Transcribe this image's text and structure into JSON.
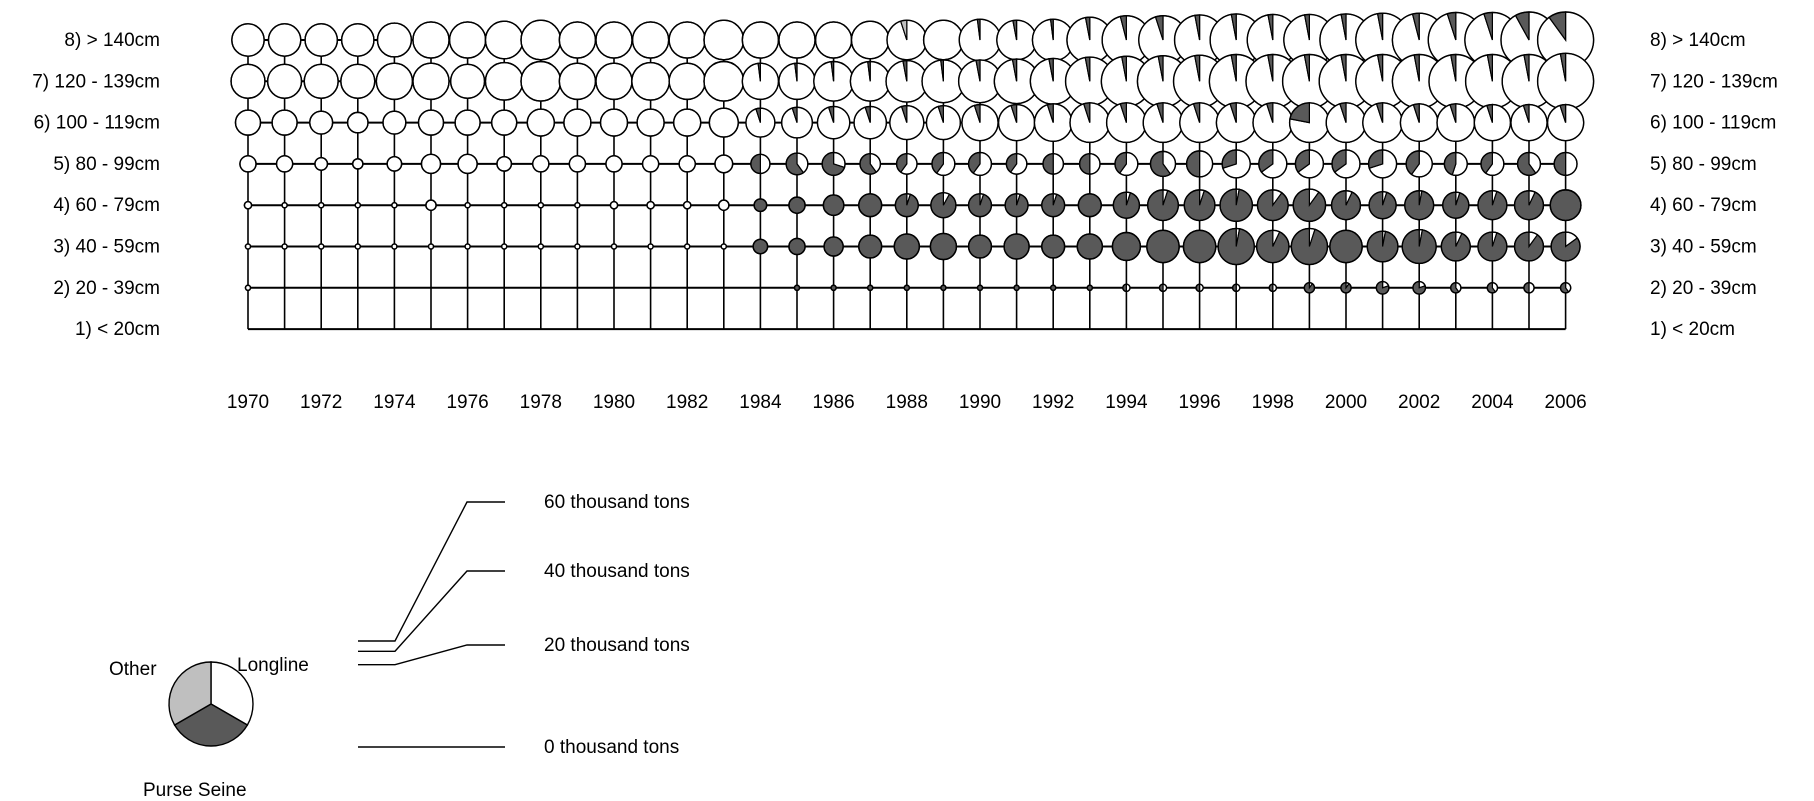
{
  "colors": {
    "longline": "#ffffff",
    "purse_seine": "#595959",
    "other": "#bfbfbf",
    "outline": "#000000"
  },
  "size_legend": {
    "items": [
      {
        "value": 60,
        "label": "60 thousand tons"
      },
      {
        "value": 40,
        "label": "40 thousand tons"
      },
      {
        "value": 20,
        "label": "20 thousand tons"
      },
      {
        "value": 0,
        "label": "0 thousand tons"
      }
    ]
  },
  "gear_legend": {
    "other": "Other",
    "longline": "Longline",
    "purse_seine": "Purse Seine"
  },
  "chart_data": {
    "type": "pie-grid",
    "x_tick_labels": [
      "1970",
      "1972",
      "1974",
      "1976",
      "1978",
      "1980",
      "1982",
      "1984",
      "1986",
      "1988",
      "1990",
      "1992",
      "1994",
      "1996",
      "1998",
      "2000",
      "2002",
      "2004",
      "2006"
    ],
    "years": [
      1970,
      1971,
      1972,
      1973,
      1974,
      1975,
      1976,
      1977,
      1978,
      1979,
      1980,
      1981,
      1982,
      1983,
      1984,
      1985,
      1986,
      1987,
      1988,
      1989,
      1990,
      1991,
      1992,
      1993,
      1994,
      1995,
      1996,
      1997,
      1998,
      1999,
      2000,
      2001,
      2002,
      2003,
      2004,
      2005,
      2006
    ],
    "size_classes": [
      {
        "label": "8)  > 140cm",
        "totals": [
          20,
          20,
          20,
          20,
          22,
          25,
          25,
          27,
          30,
          25,
          25,
          25,
          25,
          30,
          25,
          25,
          25,
          27,
          30,
          30,
          33,
          30,
          33,
          40,
          45,
          45,
          48,
          52,
          50,
          50,
          52,
          55,
          55,
          58,
          58,
          60,
          60
        ],
        "purse_seine_share": [
          0,
          0,
          0,
          0,
          0,
          0,
          0,
          0,
          0,
          0,
          0,
          0,
          0,
          0,
          0,
          0,
          0,
          0,
          0,
          0,
          0.02,
          0.03,
          0.02,
          0.03,
          0.04,
          0.05,
          0.03,
          0.03,
          0.03,
          0.03,
          0.03,
          0.03,
          0.04,
          0.05,
          0.05,
          0.08,
          0.1
        ],
        "other_share": [
          0,
          0,
          0,
          0,
          0,
          0,
          0,
          0,
          0,
          0,
          0,
          0,
          0,
          0,
          0,
          0,
          0,
          0,
          0.05,
          0,
          0,
          0,
          0,
          0,
          0,
          0,
          0,
          0,
          0,
          0,
          0,
          0,
          0,
          0,
          0,
          0,
          0
        ]
      },
      {
        "label": "7)  120 - 139cm",
        "totals": [
          22,
          22,
          22,
          22,
          25,
          25,
          22,
          27,
          30,
          25,
          25,
          27,
          25,
          30,
          25,
          25,
          30,
          30,
          33,
          35,
          35,
          38,
          40,
          45,
          48,
          50,
          52,
          55,
          55,
          55,
          55,
          55,
          55,
          55,
          55,
          55,
          60
        ],
        "purse_seine_share": [
          0,
          0,
          0,
          0,
          0,
          0,
          0,
          0,
          0,
          0,
          0,
          0,
          0,
          0,
          0.02,
          0.02,
          0.02,
          0.02,
          0.03,
          0.02,
          0.03,
          0.03,
          0.03,
          0.03,
          0.03,
          0.03,
          0.03,
          0.03,
          0.03,
          0.03,
          0.03,
          0.03,
          0.03,
          0.03,
          0.03,
          0.03,
          0.03
        ],
        "other_share": [
          0,
          0,
          0,
          0,
          0,
          0,
          0,
          0,
          0,
          0,
          0,
          0,
          0,
          0,
          0,
          0,
          0,
          0,
          0,
          0,
          0,
          0,
          0,
          0,
          0,
          0,
          0,
          0,
          0,
          0,
          0,
          0,
          0,
          0,
          0,
          0,
          0
        ]
      },
      {
        "label": "6)  100 - 119cm",
        "totals": [
          12,
          12,
          10,
          8,
          10,
          12,
          12,
          12,
          14,
          14,
          14,
          14,
          14,
          16,
          16,
          18,
          20,
          20,
          22,
          22,
          25,
          25,
          27,
          30,
          30,
          30,
          30,
          30,
          30,
          30,
          30,
          30,
          27,
          27,
          25,
          25,
          25
        ],
        "purse_seine_share": [
          0,
          0,
          0,
          0,
          0,
          0,
          0,
          0,
          0,
          0,
          0,
          0,
          0,
          0,
          0.05,
          0.05,
          0.05,
          0.05,
          0.05,
          0.05,
          0.05,
          0.05,
          0.05,
          0.05,
          0.05,
          0.05,
          0.05,
          0.05,
          0.05,
          0.22,
          0.05,
          0.05,
          0.05,
          0.05,
          0.05,
          0.05,
          0.05
        ],
        "other_share": [
          0,
          0,
          0,
          0,
          0,
          0,
          0,
          0,
          0,
          0,
          0,
          0,
          0,
          0,
          0,
          0,
          0,
          0,
          0,
          0,
          0,
          0,
          0,
          0,
          0,
          0,
          0,
          0,
          0,
          0,
          0,
          0,
          0,
          0,
          0,
          0,
          0
        ]
      },
      {
        "label": "5)  80 - 99cm",
        "totals": [
          5,
          5,
          3,
          2,
          4,
          7,
          7,
          4,
          5,
          5,
          5,
          5,
          5,
          6,
          7,
          9,
          10,
          8,
          8,
          10,
          10,
          8,
          8,
          8,
          10,
          12,
          13,
          15,
          15,
          15,
          15,
          15,
          13,
          10,
          10,
          10,
          10
        ],
        "purse_seine_share": [
          0,
          0,
          0,
          0,
          0,
          0,
          0,
          0,
          0,
          0,
          0,
          0,
          0,
          0,
          0.5,
          0.6,
          0.7,
          0.6,
          0.4,
          0.4,
          0.4,
          0.4,
          0.5,
          0.5,
          0.4,
          0.6,
          0.5,
          0.3,
          0.35,
          0.35,
          0.35,
          0.3,
          0.4,
          0.45,
          0.4,
          0.6,
          0.5
        ],
        "other_share": [
          0,
          0,
          0,
          0,
          0,
          0,
          0,
          0,
          0,
          0,
          0,
          0,
          0,
          0,
          0,
          0,
          0,
          0,
          0,
          0,
          0,
          0,
          0,
          0,
          0,
          0,
          0,
          0,
          0,
          0,
          0,
          0,
          0,
          0,
          0,
          0,
          0
        ]
      },
      {
        "label": "4)  60 - 79cm",
        "totals": [
          1,
          0.5,
          0.5,
          0.5,
          0.5,
          2,
          0.5,
          0.5,
          0.5,
          0.5,
          1,
          1,
          1,
          2,
          3,
          5,
          8,
          10,
          10,
          12,
          10,
          10,
          10,
          10,
          13,
          18,
          18,
          20,
          18,
          20,
          16,
          14,
          16,
          13,
          16,
          16,
          18
        ],
        "purse_seine_share": [
          0,
          0,
          0,
          0,
          0,
          0,
          0,
          0,
          0,
          0,
          0,
          0,
          0,
          0,
          1,
          1,
          1,
          1,
          0.95,
          0.92,
          0.95,
          0.95,
          0.95,
          1,
          0.95,
          0.95,
          0.95,
          0.97,
          0.9,
          0.9,
          0.93,
          0.95,
          0.97,
          0.95,
          0.95,
          0.93,
          1
        ],
        "other_share": [
          0,
          0,
          0,
          0,
          0,
          0,
          0,
          0,
          0,
          0,
          0,
          0,
          0,
          0,
          0,
          0,
          0,
          0,
          0,
          0,
          0,
          0,
          0,
          0,
          0,
          0,
          0,
          0,
          0,
          0,
          0,
          0,
          0,
          0,
          0,
          0,
          0
        ]
      },
      {
        "label": "3)  40 - 59cm",
        "totals": [
          0.5,
          0.5,
          0.5,
          0.5,
          0.5,
          0.5,
          0.5,
          0.5,
          0.5,
          0.5,
          0.5,
          0.5,
          0.5,
          0.5,
          4,
          5,
          7,
          10,
          12,
          13,
          10,
          12,
          10,
          12,
          15,
          20,
          20,
          25,
          20,
          25,
          20,
          18,
          22,
          16,
          16,
          16,
          16
        ],
        "purse_seine_share": [
          0,
          0,
          0,
          0,
          0,
          0,
          0,
          0,
          0,
          0,
          0,
          0,
          0,
          0,
          1,
          1,
          1,
          1,
          1,
          1,
          1,
          1,
          1,
          1,
          1,
          1,
          1,
          0.97,
          0.93,
          0.95,
          1,
          0.97,
          0.97,
          0.93,
          0.95,
          0.9,
          0.85
        ],
        "other_share": [
          0,
          0,
          0,
          0,
          0,
          0,
          0,
          0,
          0,
          0,
          0,
          0,
          0,
          0,
          0,
          0,
          0,
          0,
          0,
          0,
          0,
          0,
          0,
          0,
          0,
          0,
          0,
          0,
          0,
          0,
          0,
          0,
          0,
          0,
          0,
          0,
          0
        ]
      },
      {
        "label": "2)  20 - 39cm",
        "totals": [
          0.5,
          0,
          0,
          0,
          0,
          0,
          0,
          0,
          0,
          0,
          0,
          0,
          0,
          0,
          0,
          0.5,
          0.5,
          0.5,
          0.5,
          0.5,
          0.5,
          0.5,
          0.5,
          0.5,
          1,
          1,
          1,
          1,
          1,
          2,
          2,
          3,
          3,
          2,
          2,
          2,
          2
        ],
        "purse_seine_share": [
          0,
          0,
          0,
          0,
          0,
          0,
          0,
          0,
          0,
          0,
          0,
          0,
          0,
          0,
          0,
          1,
          1,
          1,
          1,
          1,
          1,
          1,
          1,
          1,
          0.5,
          0.5,
          0.5,
          0.5,
          0.5,
          0.9,
          0.9,
          0.8,
          0.8,
          0.6,
          0.6,
          0.5,
          0.6
        ],
        "other_share": [
          0,
          0,
          0,
          0,
          0,
          0,
          0,
          0,
          0,
          0,
          0,
          0,
          0,
          0,
          0,
          0,
          0,
          0,
          0,
          0,
          0,
          0,
          0,
          0,
          0,
          0,
          0,
          0,
          0,
          0,
          0,
          0,
          0,
          0,
          0,
          0,
          0
        ]
      },
      {
        "label": "1)  < 20cm",
        "totals": [
          0,
          0,
          0,
          0,
          0,
          0,
          0,
          0,
          0,
          0,
          0,
          0,
          0,
          0,
          0,
          0,
          0,
          0,
          0,
          0,
          0,
          0,
          0,
          0,
          0,
          0,
          0,
          0,
          0,
          0,
          0,
          0,
          0,
          0,
          0,
          0,
          0
        ],
        "purse_seine_share": [
          0,
          0,
          0,
          0,
          0,
          0,
          0,
          0,
          0,
          0,
          0,
          0,
          0,
          0,
          0,
          0,
          0,
          0,
          0,
          0,
          0,
          0,
          0,
          0,
          0,
          0,
          0,
          0,
          0,
          0,
          0,
          0,
          0,
          0,
          0,
          0,
          0
        ],
        "other_share": [
          0,
          0,
          0,
          0,
          0,
          0,
          0,
          0,
          0,
          0,
          0,
          0,
          0,
          0,
          0,
          0,
          0,
          0,
          0,
          0,
          0,
          0,
          0,
          0,
          0,
          0,
          0,
          0,
          0,
          0,
          0,
          0,
          0,
          0,
          0,
          0,
          0
        ]
      }
    ]
  }
}
